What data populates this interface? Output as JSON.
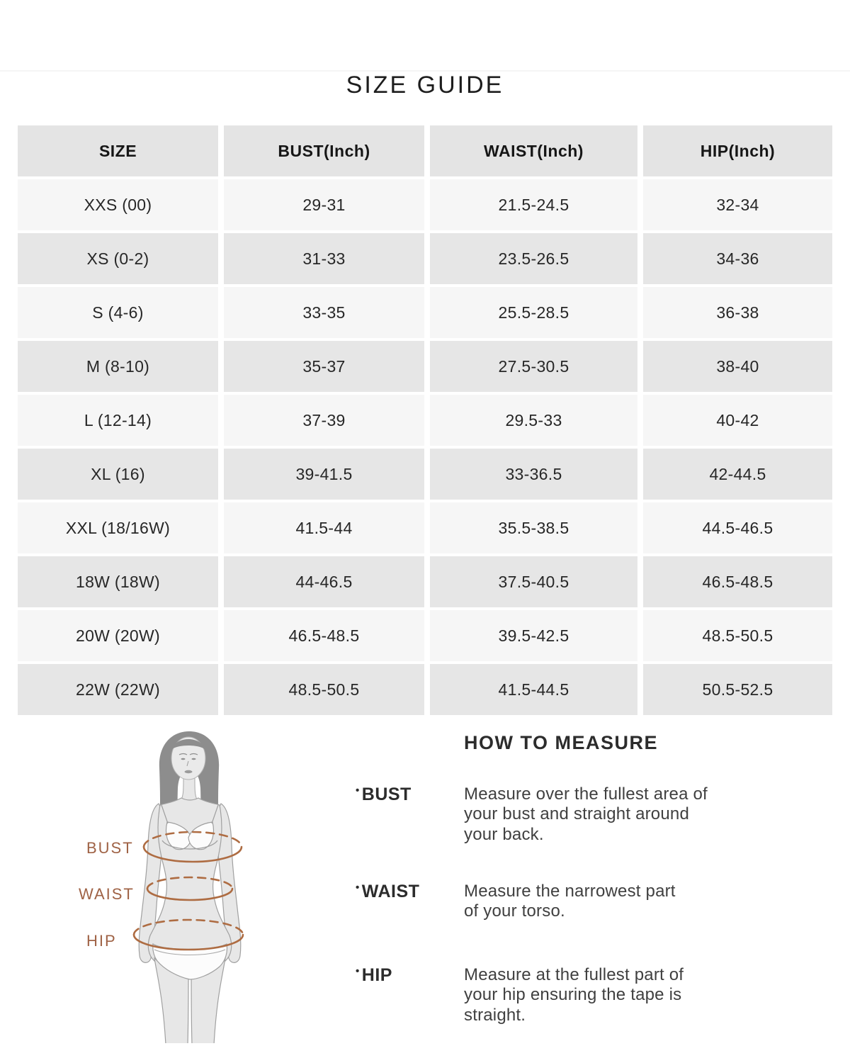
{
  "page": {
    "title": "SIZE GUIDE"
  },
  "size_table": {
    "columns": [
      "SIZE",
      "BUST(Inch)",
      "WAIST(Inch)",
      "HIP(Inch)"
    ],
    "rows": [
      [
        "XXS (00)",
        "29-31",
        "21.5-24.5",
        "32-34"
      ],
      [
        "XS (0-2)",
        "31-33",
        "23.5-26.5",
        "34-36"
      ],
      [
        "S (4-6)",
        "33-35",
        "25.5-28.5",
        "36-38"
      ],
      [
        "M (8-10)",
        "35-37",
        "27.5-30.5",
        "38-40"
      ],
      [
        "L (12-14)",
        "37-39",
        "29.5-33",
        "40-42"
      ],
      [
        "XL (16)",
        "39-41.5",
        "33-36.5",
        "42-44.5"
      ],
      [
        "XXL (18/16W)",
        "41.5-44",
        "35.5-38.5",
        "44.5-46.5"
      ],
      [
        "18W (18W)",
        "44-46.5",
        "37.5-40.5",
        "46.5-48.5"
      ],
      [
        "20W (20W)",
        "46.5-48.5",
        "39.5-42.5",
        "48.5-50.5"
      ],
      [
        "22W (22W)",
        "48.5-50.5",
        "41.5-44.5",
        "50.5-52.5"
      ]
    ]
  },
  "figure": {
    "bust_label": "BUST",
    "waist_label": "WAIST",
    "hip_label": "HIP",
    "accent_color": "#ae6c42"
  },
  "how_to_measure": {
    "heading": "HOW TO MEASURE",
    "bullet_icon": "•",
    "items": [
      {
        "label": "BUST",
        "description": "Measure over the fullest area of your bust and straight around your back."
      },
      {
        "label": "WAIST",
        "description": "Measure the narrowest part of your torso."
      },
      {
        "label": "HIP",
        "description": "Measure at the fullest part of your hip ensuring the tape is straight."
      }
    ]
  }
}
